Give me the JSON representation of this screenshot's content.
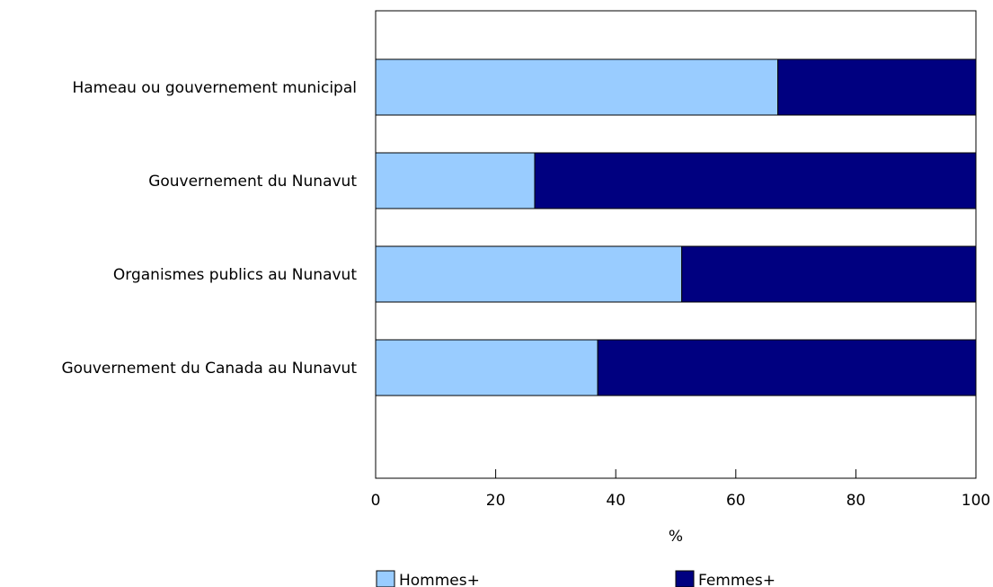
{
  "chart_data": {
    "type": "bar",
    "orientation": "horizontal",
    "stacked": true,
    "categories": [
      "Hameau ou gouvernement municipal",
      "Gouvernement du Nunavut",
      "Organismes publics au Nunavut",
      "Gouvernement du Canada au Nunavut"
    ],
    "series": [
      {
        "name": "Hommes+",
        "values": [
          67,
          26.5,
          51,
          37
        ],
        "color": "#99ccff"
      },
      {
        "name": "Femmes+",
        "values": [
          33,
          73.5,
          49,
          63
        ],
        "color": "#000080"
      }
    ],
    "xlabel": "%",
    "xlim": [
      0,
      100
    ],
    "xticks": [
      "0",
      "20",
      "40",
      "60",
      "80",
      "100"
    ],
    "grid": false,
    "legend_position": "bottom"
  }
}
